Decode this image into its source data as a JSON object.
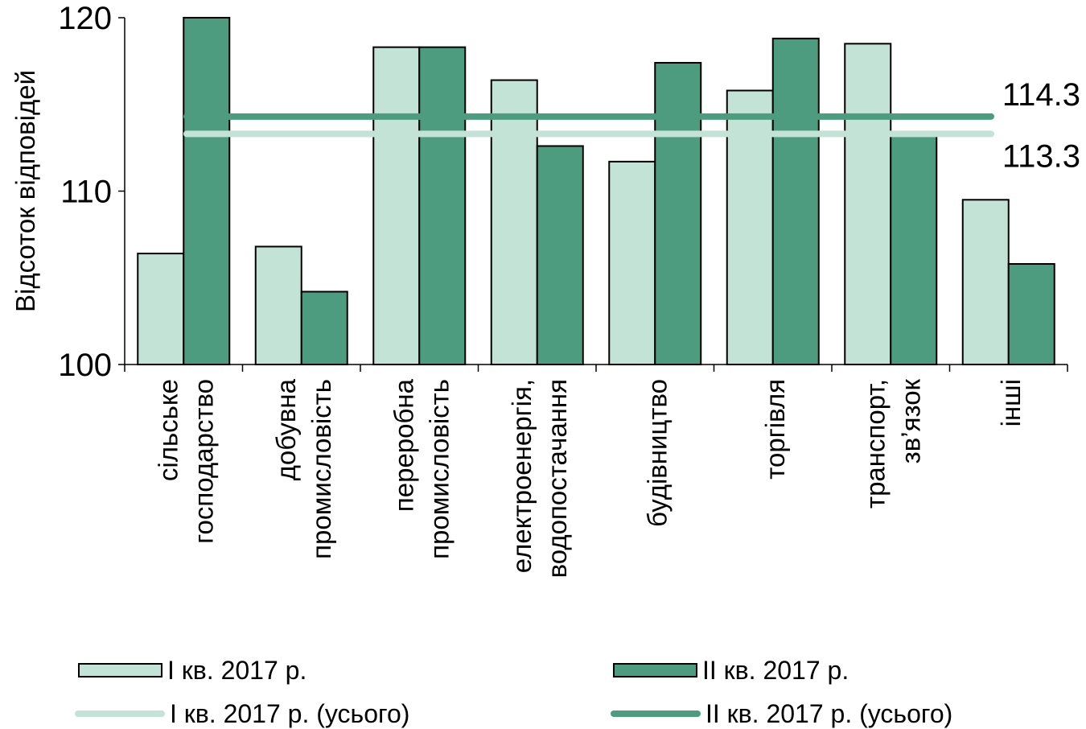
{
  "chart_data": {
    "type": "bar",
    "ylabel": "Відсоток відповідей",
    "ylim": [
      100,
      120
    ],
    "yticks": [
      "100",
      "110",
      "120"
    ],
    "categories": [
      [
        "сільське",
        "господарство"
      ],
      [
        "добувна",
        "промисловість"
      ],
      [
        "переробна",
        "промисловість"
      ],
      [
        "електроенергія,",
        "водопостачання"
      ],
      [
        "будівництво"
      ],
      [
        "торгівля"
      ],
      [
        "транспорт,",
        "зв’язок"
      ],
      [
        "інші"
      ]
    ],
    "series": [
      {
        "name": "I кв. 2017 р.",
        "color": "#c3e3d6",
        "values": [
          106.4,
          106.8,
          118.3,
          116.4,
          111.7,
          115.8,
          118.5,
          109.5
        ]
      },
      {
        "name": "II кв. 2017 р.",
        "color": "#4e9c80",
        "values": [
          120.0,
          104.2,
          118.3,
          112.6,
          117.4,
          118.8,
          113.3,
          105.8
        ]
      }
    ],
    "reference_lines": [
      {
        "name": "I кв. 2017 р. (усього)",
        "value": 113.3,
        "label": "113.3",
        "color": "#c3e3d6"
      },
      {
        "name": "II кв. 2017 р. (усього)",
        "value": 114.3,
        "label": "114.3",
        "color": "#4e9c80"
      }
    ],
    "legend_position": "bottom"
  }
}
